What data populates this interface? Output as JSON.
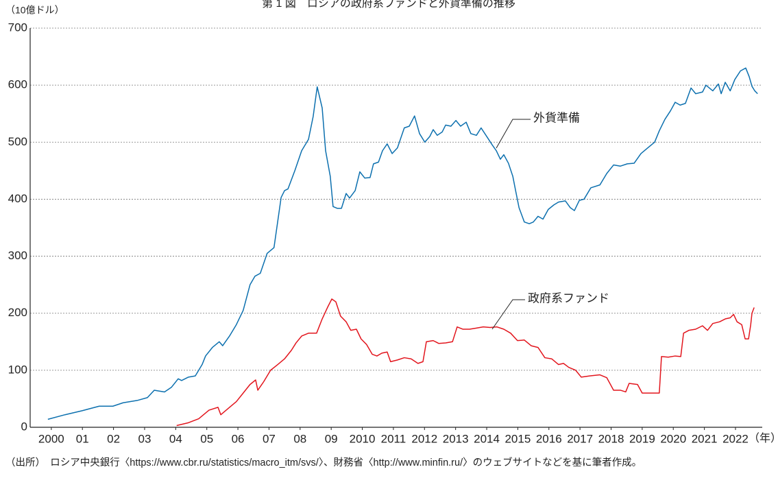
{
  "chart_data": {
    "type": "line",
    "title": "第 1 図　ロシアの政府系ファンドと外貨準備の推移",
    "y_label": "（10億ドル）",
    "x_label": "（年）",
    "note": "（出所）　ロシア中央銀行〈https://www.cbr.ru/statistics/macro_itm/svs/〉、財務省〈http://www.minfin.ru/〉のウェブサイトなどを基に筆者作成。",
    "xlim": [
      1999.32,
      2022.86
    ],
    "xticks": [
      {
        "value": 2000,
        "label": "2000"
      },
      {
        "value": 2001,
        "label": "01"
      },
      {
        "value": 2002,
        "label": "02"
      },
      {
        "value": 2003,
        "label": "03"
      },
      {
        "value": 2004,
        "label": "04"
      },
      {
        "value": 2005,
        "label": "05"
      },
      {
        "value": 2006,
        "label": "06"
      },
      {
        "value": 2007,
        "label": "07"
      },
      {
        "value": 2008,
        "label": "08"
      },
      {
        "value": 2009,
        "label": "09"
      },
      2010,
      2011,
      2012,
      2013,
      2014,
      2015,
      2016,
      2017,
      2018,
      2019,
      2020,
      2021,
      2022
    ],
    "ylim": [
      0,
      700
    ],
    "yticks": [
      0,
      100,
      200,
      300,
      400,
      500,
      600,
      700
    ],
    "grid": true,
    "series": [
      {
        "name": "外貨準備",
        "color": "#0b6fae",
        "x": [
          1999.89,
          2000.44,
          2000.99,
          2001.54,
          2001.98,
          2002.31,
          2002.76,
          2003.09,
          2003.31,
          2003.64,
          2003.86,
          2004.08,
          2004.19,
          2004.41,
          2004.63,
          2004.85,
          2004.96,
          2005.18,
          2005.4,
          2005.51,
          2005.73,
          2005.95,
          2006.17,
          2006.39,
          2006.55,
          2006.72,
          2006.94,
          2007.16,
          2007.39,
          2007.5,
          2007.61,
          2007.83,
          2008.05,
          2008.27,
          2008.42,
          2008.55,
          2008.71,
          2008.82,
          2008.97,
          2009.06,
          2009.19,
          2009.33,
          2009.48,
          2009.59,
          2009.77,
          2009.92,
          2010.08,
          2010.25,
          2010.36,
          2010.52,
          2010.65,
          2010.8,
          2010.96,
          2011.13,
          2011.35,
          2011.51,
          2011.68,
          2011.84,
          2012.01,
          2012.17,
          2012.28,
          2012.41,
          2012.57,
          2012.68,
          2012.85,
          2013.01,
          2013.16,
          2013.34,
          2013.49,
          2013.67,
          2013.82,
          2014.0,
          2014.18,
          2014.31,
          2014.44,
          2014.55,
          2014.7,
          2014.84,
          2014.93,
          2015.04,
          2015.21,
          2015.37,
          2015.5,
          2015.65,
          2015.81,
          2015.98,
          2016.16,
          2016.31,
          2016.53,
          2016.69,
          2016.82,
          2016.98,
          2017.13,
          2017.35,
          2017.64,
          2017.86,
          2018.08,
          2018.3,
          2018.52,
          2018.74,
          2018.96,
          2019.18,
          2019.4,
          2019.55,
          2019.73,
          2019.91,
          2020.06,
          2020.22,
          2020.39,
          2020.57,
          2020.72,
          2020.94,
          2021.05,
          2021.27,
          2021.45,
          2021.54,
          2021.67,
          2021.83,
          2021.98,
          2022.16,
          2022.33,
          2022.44,
          2022.53,
          2022.62,
          2022.71
        ],
        "values": [
          14,
          22,
          29,
          37,
          37,
          43,
          47,
          52,
          65,
          62,
          70,
          85,
          82,
          88,
          90,
          110,
          125,
          140,
          150,
          143,
          160,
          180,
          205,
          250,
          265,
          270,
          305,
          315,
          403,
          415,
          418,
          450,
          485,
          505,
          545,
          597,
          560,
          485,
          440,
          387,
          384,
          384,
          410,
          402,
          415,
          448,
          437,
          438,
          462,
          465,
          485,
          497,
          480,
          490,
          525,
          528,
          546,
          515,
          500,
          510,
          522,
          512,
          518,
          530,
          528,
          538,
          528,
          535,
          515,
          512,
          525,
          510,
          495,
          485,
          470,
          478,
          463,
          440,
          415,
          385,
          360,
          357,
          360,
          370,
          365,
          382,
          390,
          395,
          397,
          385,
          380,
          398,
          400,
          420,
          425,
          445,
          460,
          458,
          462,
          463,
          480,
          490,
          500,
          520,
          540,
          555,
          570,
          565,
          568,
          595,
          585,
          588,
          600,
          590,
          602,
          585,
          605,
          590,
          610,
          625,
          630,
          615,
          598,
          590,
          585
        ]
      },
      {
        "name": "政府系ファンド",
        "color": "#e2141c",
        "x": [
          2004.03,
          2004.41,
          2004.74,
          2005.07,
          2005.36,
          2005.45,
          2005.73,
          2005.95,
          2006.17,
          2006.39,
          2006.57,
          2006.64,
          2006.83,
          2007.05,
          2007.28,
          2007.5,
          2007.72,
          2007.87,
          2008.05,
          2008.27,
          2008.53,
          2008.71,
          2008.88,
          2009.02,
          2009.15,
          2009.3,
          2009.48,
          2009.63,
          2009.81,
          2009.96,
          2010.14,
          2010.32,
          2010.47,
          2010.63,
          2010.8,
          2010.91,
          2011.13,
          2011.35,
          2011.57,
          2011.79,
          2011.95,
          2012.06,
          2012.28,
          2012.46,
          2012.68,
          2012.9,
          2013.05,
          2013.23,
          2013.45,
          2013.67,
          2013.89,
          2014.11,
          2014.33,
          2014.55,
          2014.77,
          2014.99,
          2015.21,
          2015.43,
          2015.65,
          2015.87,
          2016.09,
          2016.31,
          2016.47,
          2016.64,
          2016.86,
          2017.04,
          2017.31,
          2017.64,
          2017.86,
          2018.08,
          2018.3,
          2018.47,
          2018.58,
          2018.85,
          2019.0,
          2019.25,
          2019.55,
          2019.62,
          2019.84,
          2020.06,
          2020.24,
          2020.33,
          2020.5,
          2020.72,
          2020.94,
          2021.1,
          2021.27,
          2021.49,
          2021.67,
          2021.83,
          2021.94,
          2022.05,
          2022.2,
          2022.31,
          2022.42,
          2022.49,
          2022.53,
          2022.6
        ],
        "values": [
          3,
          8,
          15,
          30,
          35,
          22,
          35,
          45,
          60,
          75,
          83,
          65,
          80,
          100,
          110,
          120,
          135,
          148,
          160,
          165,
          165,
          190,
          210,
          225,
          220,
          195,
          185,
          170,
          172,
          155,
          145,
          128,
          125,
          130,
          132,
          115,
          118,
          122,
          120,
          112,
          115,
          150,
          152,
          147,
          148,
          150,
          176,
          172,
          172,
          174,
          176,
          175,
          176,
          172,
          165,
          152,
          153,
          143,
          140,
          122,
          120,
          110,
          112,
          105,
          100,
          88,
          90,
          92,
          87,
          65,
          65,
          62,
          77,
          75,
          60,
          60,
          60,
          124,
          123,
          125,
          124,
          165,
          170,
          172,
          178,
          170,
          182,
          185,
          190,
          192,
          198,
          185,
          180,
          155,
          155,
          180,
          200,
          210
        ]
      }
    ]
  }
}
